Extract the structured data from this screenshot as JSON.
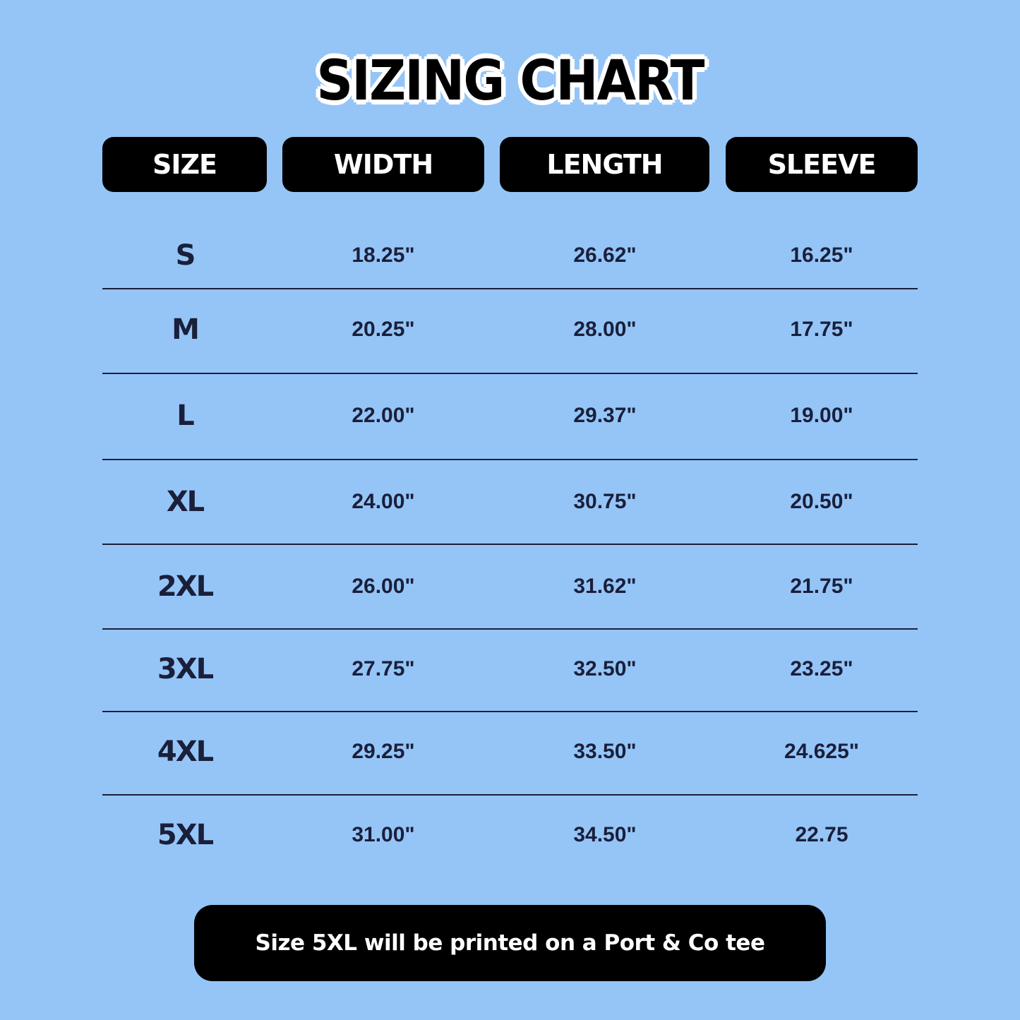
{
  "title": "SIZING CHART",
  "colors": {
    "background": "#95c5f7",
    "header_bg": "#000000",
    "text": "#1a1f3a"
  },
  "headers": [
    "SIZE",
    "WIDTH",
    "LENGTH",
    "SLEEVE"
  ],
  "rows": [
    {
      "size": "S",
      "width": "18.25\"",
      "length": "26.62\"",
      "sleeve": "16.25\""
    },
    {
      "size": "M",
      "width": "20.25\"",
      "length": "28.00\"",
      "sleeve": "17.75\""
    },
    {
      "size": "L",
      "width": "22.00\"",
      "length": "29.37\"",
      "sleeve": "19.00\""
    },
    {
      "size": "XL",
      "width": "24.00\"",
      "length": "30.75\"",
      "sleeve": "20.50\""
    },
    {
      "size": "2XL",
      "width": "26.00\"",
      "length": "31.62\"",
      "sleeve": "21.75\""
    },
    {
      "size": "3XL",
      "width": "27.75\"",
      "length": "32.50\"",
      "sleeve": "23.25\""
    },
    {
      "size": "4XL",
      "width": "29.25\"",
      "length": "33.50\"",
      "sleeve": "24.625\""
    },
    {
      "size": "5XL",
      "width": "31.00\"",
      "length": "34.50\"",
      "sleeve": "22.75"
    }
  ],
  "note": "Size 5XL will be printed on a Port & Co tee"
}
